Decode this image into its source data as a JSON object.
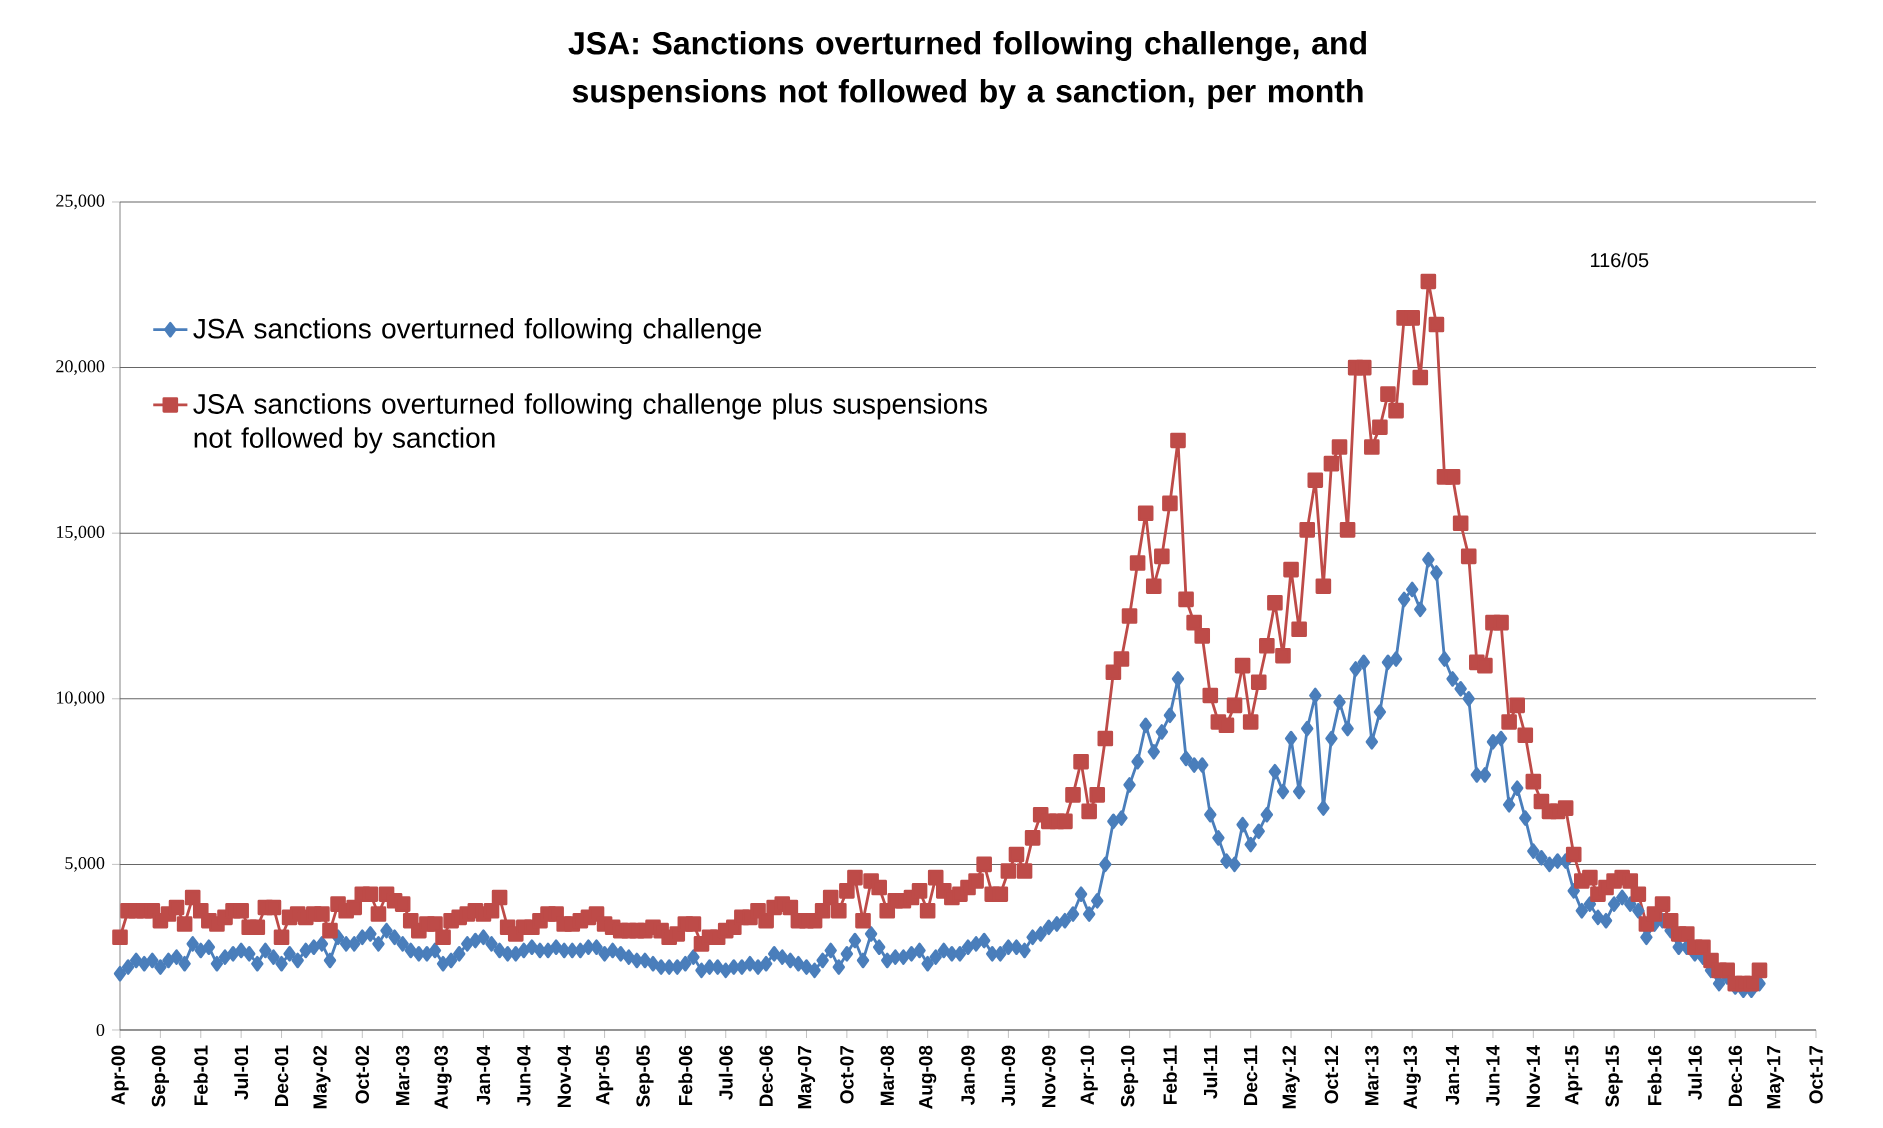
{
  "chart_data": {
    "type": "line",
    "title": "JSA: Sanctions overturned following challenge, and suspensions not followed by a sanction, per month",
    "categories": [
      "Apr-00",
      null,
      null,
      null,
      null,
      "Sep-00",
      null,
      null,
      null,
      null,
      "Feb-01",
      null,
      null,
      null,
      null,
      "Jul-01",
      null,
      null,
      null,
      null,
      "Dec-01",
      null,
      null,
      null,
      null,
      "May-02",
      null,
      null,
      null,
      null,
      "Oct-02",
      null,
      null,
      null,
      null,
      "Mar-03",
      null,
      null,
      null,
      null,
      "Aug-03",
      null,
      null,
      null,
      null,
      "Jan-04",
      null,
      null,
      null,
      null,
      "Jun-04",
      null,
      null,
      null,
      null,
      "Nov-04",
      null,
      null,
      null,
      null,
      "Apr-05",
      null,
      null,
      null,
      null,
      "Sep-05",
      null,
      null,
      null,
      null,
      "Feb-06",
      null,
      null,
      null,
      null,
      "Jul-06",
      null,
      null,
      null,
      null,
      "Dec-06",
      null,
      null,
      null,
      null,
      "May-07",
      null,
      null,
      null,
      null,
      "Oct-07",
      null,
      null,
      null,
      null,
      "Mar-08",
      null,
      null,
      null,
      null,
      "Aug-08",
      null,
      null,
      null,
      null,
      "Jan-09",
      null,
      null,
      null,
      null,
      "Jun-09",
      null,
      null,
      null,
      null,
      "Nov-09",
      null,
      null,
      null,
      null,
      "Apr-10",
      null,
      null,
      null,
      null,
      "Sep-10",
      null,
      null,
      null,
      null,
      "Feb-11",
      null,
      null,
      null,
      null,
      "Jul-11",
      null,
      null,
      null,
      null,
      "Dec-11",
      null,
      null,
      null,
      null,
      "May-12",
      null,
      null,
      null,
      null,
      "Oct-12",
      null,
      null,
      null,
      null,
      "Mar-13",
      null,
      null,
      null,
      null,
      "Aug-13",
      null,
      null,
      null,
      null,
      "Jan-14",
      null,
      null,
      null,
      null,
      "Jun-14",
      null,
      null,
      null,
      null,
      "Nov-14",
      null,
      null,
      null,
      null,
      "Apr-15",
      null,
      null,
      null,
      null,
      "Sep-15",
      null,
      null,
      null,
      null,
      "Feb-16",
      null,
      null,
      null,
      null,
      "Jul-16",
      null,
      null,
      null,
      null,
      "Dec-16",
      null,
      null,
      null,
      null,
      "May-17",
      null,
      null,
      null,
      null,
      "Oct-17"
    ],
    "series": [
      {
        "name": "JSA sanctions overturned following challenge",
        "color": "#4a7ebb",
        "marker": "diamond",
        "values": [
          1700,
          1900,
          2100,
          2000,
          2100,
          1900,
          2100,
          2200,
          2000,
          2600,
          2400,
          2500,
          2000,
          2200,
          2300,
          2400,
          2300,
          2000,
          2400,
          2200,
          2000,
          2300,
          2100,
          2400,
          2500,
          2600,
          2100,
          2800,
          2600,
          2600,
          2800,
          2900,
          2600,
          3000,
          2800,
          2600,
          2400,
          2300,
          2300,
          2400,
          2000,
          2100,
          2300,
          2600,
          2700,
          2800,
          2600,
          2400,
          2300,
          2300,
          2400,
          2500,
          2400,
          2400,
          2500,
          2400,
          2400,
          2400,
          2500,
          2500,
          2300,
          2400,
          2300,
          2200,
          2100,
          2100,
          2000,
          1900,
          1900,
          1900,
          2000,
          2200,
          1800,
          1900,
          1900,
          1800,
          1900,
          1900,
          2000,
          1900,
          2000,
          2300,
          2200,
          2100,
          2000,
          1900,
          1800,
          2100,
          2400,
          1900,
          2300,
          2700,
          2100,
          2900,
          2500,
          2100,
          2200,
          2200,
          2300,
          2400,
          2000,
          2200,
          2400,
          2300,
          2300,
          2500,
          2600,
          2700,
          2300,
          2300,
          2500,
          2500,
          2400,
          2800,
          2900,
          3100,
          3200,
          3300,
          3500,
          4100,
          3500,
          3900,
          5000,
          6300,
          6400,
          7400,
          8100,
          9200,
          8400,
          9000,
          9500,
          10600,
          8200,
          8000,
          8000,
          6500,
          5800,
          5100,
          5000,
          6200,
          5600,
          6000,
          6500,
          7800,
          7200,
          8800,
          7200,
          9100,
          10100,
          6700,
          8800,
          9900,
          9100,
          10900,
          11100,
          8700,
          9600,
          11100,
          11200,
          13000,
          13300,
          12700,
          14200,
          13800,
          11200,
          10600,
          10300,
          10000,
          7700,
          7700,
          8700,
          8800,
          6800,
          7300,
          6400,
          5400,
          5200,
          5000,
          5100,
          5100,
          4200,
          3600,
          3800,
          3400,
          3300,
          3800,
          4000,
          3800,
          3600,
          2800,
          3200,
          3300,
          3000,
          2500,
          2500,
          2300,
          2200,
          1800,
          1400,
          1600,
          1300,
          1200,
          1200,
          1400,
          null,
          null,
          null,
          null,
          null,
          null,
          null
        ]
      },
      {
        "name": "JSA sanctions overturned following challenge plus suspensions not followed by sanction",
        "color": "#be4b48",
        "marker": "square",
        "values": [
          2800,
          3600,
          3600,
          3600,
          3600,
          3300,
          3500,
          3700,
          3200,
          4000,
          3600,
          3300,
          3200,
          3400,
          3600,
          3600,
          3100,
          3100,
          3700,
          3700,
          2800,
          3400,
          3500,
          3400,
          3500,
          3500,
          3000,
          3800,
          3600,
          3700,
          4100,
          4100,
          3500,
          4100,
          3900,
          3800,
          3300,
          3000,
          3200,
          3200,
          2800,
          3300,
          3400,
          3500,
          3600,
          3500,
          3600,
          4000,
          3100,
          2900,
          3100,
          3100,
          3300,
          3500,
          3500,
          3200,
          3200,
          3300,
          3400,
          3500,
          3200,
          3100,
          3000,
          3000,
          3000,
          3000,
          3100,
          3000,
          2800,
          2900,
          3200,
          3200,
          2600,
          2800,
          2800,
          3000,
          3100,
          3400,
          3400,
          3600,
          3300,
          3700,
          3800,
          3700,
          3300,
          3300,
          3300,
          3600,
          4000,
          3600,
          4200,
          4600,
          3300,
          4500,
          4300,
          3600,
          3900,
          3900,
          4000,
          4200,
          3600,
          4600,
          4200,
          4000,
          4100,
          4300,
          4500,
          5000,
          4100,
          4100,
          4800,
          5300,
          4800,
          5800,
          6500,
          6300,
          6300,
          6300,
          7100,
          8100,
          6600,
          7100,
          8800,
          10800,
          11200,
          12500,
          14100,
          15600,
          13400,
          14300,
          15900,
          17800,
          13000,
          12300,
          11900,
          10100,
          9300,
          9200,
          9800,
          11000,
          9300,
          10500,
          11600,
          12900,
          11300,
          13900,
          12100,
          15100,
          16600,
          13400,
          17100,
          17600,
          15100,
          20000,
          20000,
          17600,
          18200,
          19200,
          18700,
          21500,
          21500,
          19700,
          22600,
          21300,
          16700,
          16700,
          15300,
          14300,
          11100,
          11000,
          12300,
          12300,
          9300,
          9800,
          8900,
          7500,
          6900,
          6600,
          6600,
          6700,
          5300,
          4500,
          4600,
          4100,
          4300,
          4500,
          4600,
          4500,
          4100,
          3200,
          3500,
          3800,
          3300,
          2900,
          2900,
          2500,
          2500,
          2100,
          1800,
          1800,
          1400,
          1400,
          1400,
          1800,
          null,
          null,
          null,
          null,
          null,
          null,
          null
        ]
      }
    ],
    "ylim": [
      0,
      25000
    ],
    "yticks": [
      0,
      {
        "value": 5000,
        "label": "5,000"
      },
      {
        "value": 10000,
        "label": "10,000"
      },
      {
        "value": 15000,
        "label": "15,000"
      },
      {
        "value": 20000,
        "label": "20,000"
      },
      {
        "value": 25000,
        "label": "25,000"
      }
    ],
    "grid": "y",
    "legend": "top left",
    "line_style": "solid",
    "annotations": [
      "116/05"
    ]
  }
}
